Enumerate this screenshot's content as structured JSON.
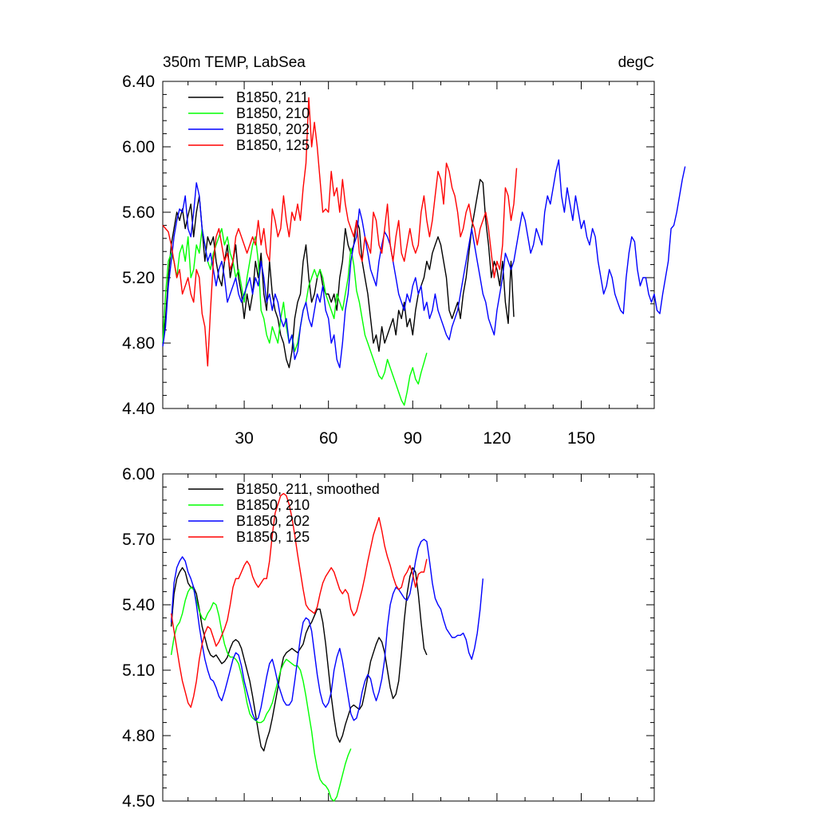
{
  "chart_data": [
    {
      "type": "line",
      "title": "350m TEMP, LabSea",
      "units": "degC",
      "xlim": [
        1,
        176
      ],
      "ylim": [
        4.4,
        6.4
      ],
      "xticks": [
        30,
        60,
        90,
        120,
        150
      ],
      "xtick_labels": [
        "30",
        "60",
        "90",
        "120",
        "150"
      ],
      "yticks": [
        4.4,
        4.8,
        5.2,
        5.6,
        6.0,
        6.4
      ],
      "ytick_labels": [
        "4.40",
        "4.80",
        "5.20",
        "5.60",
        "6.00",
        "6.40"
      ],
      "legend_position": "top-left",
      "series": [
        {
          "name": "B1850, 211",
          "color": "#000000",
          "x_start": 1,
          "values": [
            4.8,
            4.95,
            5.2,
            5.4,
            5.5,
            5.6,
            5.55,
            5.62,
            5.5,
            5.58,
            5.65,
            5.45,
            5.6,
            5.7,
            5.5,
            5.3,
            5.45,
            5.4,
            5.45,
            5.3,
            5.2,
            5.15,
            5.3,
            5.4,
            5.2,
            5.3,
            5.4,
            5.2,
            5.1,
            4.95,
            5.1,
            5.0,
            5.1,
            5.3,
            5.2,
            5.35,
            5.1,
            5.0,
            5.3,
            5.1,
            5.0,
            4.95,
            4.85,
            4.8,
            4.7,
            4.65,
            4.75,
            4.95,
            5.05,
            5.1,
            5.3,
            5.4,
            5.2,
            5.05,
            5.1,
            5.2,
            5.25,
            5.15,
            5.1,
            5.1,
            5.05,
            5.1,
            5.0,
            5.2,
            5.3,
            5.5,
            5.4,
            5.35,
            5.4,
            5.55,
            5.5,
            5.3,
            5.2,
            5.1,
            4.95,
            4.8,
            4.85,
            4.75,
            4.9,
            4.8,
            4.85,
            4.9,
            4.95,
            4.85,
            5.0,
            4.95,
            5.05,
            4.9,
            4.95,
            4.85,
            5.0,
            5.1,
            5.15,
            5.2,
            5.3,
            5.25,
            5.35,
            5.4,
            5.45,
            5.4,
            5.3,
            5.2,
            5.0,
            4.95,
            5.0,
            5.05,
            4.95,
            5.1,
            5.2,
            5.35,
            5.5,
            5.6,
            5.7,
            5.8,
            5.78,
            5.55,
            5.4,
            5.2,
            5.3,
            5.25,
            5.15,
            5.3,
            5.05,
            4.92,
            5.3,
            4.96
          ]
        },
        {
          "name": "B1850, 210",
          "color": "#00ff00",
          "x_start": 1,
          "values": [
            4.8,
            5.1,
            5.3,
            5.35,
            5.3,
            5.2,
            5.35,
            5.4,
            5.3,
            5.45,
            5.2,
            5.25,
            5.4,
            5.35,
            5.5,
            5.4,
            5.3,
            5.25,
            5.35,
            5.4,
            5.45,
            5.5,
            5.4,
            5.45,
            5.35,
            5.3,
            5.2,
            5.25,
            5.15,
            5.05,
            5.2,
            5.3,
            5.4,
            5.45,
            5.3,
            5.0,
            4.95,
            4.85,
            4.8,
            4.9,
            4.85,
            4.8,
            4.95,
            5.05,
            4.9,
            4.8,
            4.85,
            4.75,
            4.8,
            4.9,
            5.0,
            5.05,
            5.15,
            5.2,
            5.25,
            5.2,
            5.25,
            5.2,
            5.1,
            5.05,
            5.0,
            4.95,
            5.1,
            5.05,
            5.0,
            5.1,
            5.2,
            5.38,
            5.28,
            5.12,
            5.05,
            4.95,
            4.85,
            4.8,
            4.75,
            4.7,
            4.65,
            4.6,
            4.58,
            4.62,
            4.7,
            4.65,
            4.6,
            4.55,
            4.5,
            4.45,
            4.42,
            4.5,
            4.6,
            4.65,
            4.58,
            4.55,
            4.62,
            4.68,
            4.74
          ]
        },
        {
          "name": "B1850, 202",
          "color": "#0000ff",
          "x_start": 1,
          "values": [
            4.78,
            4.9,
            5.15,
            5.3,
            5.45,
            5.55,
            5.62,
            5.6,
            5.7,
            5.5,
            5.45,
            5.6,
            5.78,
            5.7,
            5.5,
            5.4,
            5.3,
            5.35,
            5.25,
            5.15,
            5.25,
            5.3,
            5.2,
            5.05,
            5.1,
            5.15,
            5.2,
            5.1,
            5.05,
            5.1,
            5.15,
            5.2,
            5.1,
            5.2,
            5.15,
            5.3,
            5.2,
            5.05,
            5.1,
            5.0,
            5.1,
            5.05,
            4.95,
            4.9,
            4.95,
            4.8,
            4.85,
            4.7,
            4.75,
            4.9,
            5.0,
            5.05,
            4.95,
            4.9,
            5.0,
            5.1,
            5.05,
            5.15,
            5.0,
            4.95,
            4.8,
            4.85,
            4.7,
            4.65,
            4.8,
            5.0,
            5.1,
            5.3,
            5.4,
            5.45,
            5.62,
            5.55,
            5.45,
            5.35,
            5.25,
            5.2,
            5.15,
            5.3,
            5.4,
            5.48,
            5.45,
            5.4,
            5.3,
            5.2,
            5.1,
            5.05,
            5.0,
            5.1,
            5.05,
            5.15,
            5.2,
            5.1,
            5.15,
            5.0,
            5.05,
            4.95,
            5.0,
            5.1,
            5.0,
            4.95,
            4.9,
            4.85,
            4.82,
            4.9,
            4.95,
            5.0,
            5.1,
            5.2,
            5.3,
            5.4,
            5.5,
            5.4,
            5.3,
            5.2,
            5.1,
            5.05,
            4.95,
            4.9,
            4.85,
            5.0,
            5.1,
            5.2,
            5.35,
            5.3,
            5.25,
            5.3,
            5.4,
            5.5,
            5.6,
            5.55,
            5.45,
            5.35,
            5.4,
            5.5,
            5.45,
            5.4,
            5.6,
            5.7,
            5.65,
            5.75,
            5.85,
            5.92,
            5.7,
            5.6,
            5.75,
            5.65,
            5.55,
            5.7,
            5.6,
            5.5,
            5.55,
            5.45,
            5.4,
            5.5,
            5.45,
            5.3,
            5.2,
            5.1,
            5.15,
            5.25,
            5.2,
            5.1,
            5.05,
            5.0,
            4.98,
            5.2,
            5.35,
            5.45,
            5.42,
            5.25,
            5.15,
            5.2,
            5.2,
            5.1,
            5.05,
            5.1,
            5.0,
            4.98,
            5.1,
            5.2,
            5.3,
            5.5,
            5.52,
            5.6,
            5.7,
            5.8,
            5.88
          ]
        },
        {
          "name": "B1850, 125",
          "color": "#ff0000",
          "x_start": 1,
          "values": [
            5.52,
            5.5,
            5.48,
            5.4,
            5.3,
            5.2,
            5.25,
            5.1,
            5.15,
            5.2,
            5.1,
            5.05,
            5.25,
            5.2,
            4.98,
            4.9,
            4.66,
            5.0,
            5.3,
            5.45,
            5.5,
            5.4,
            5.3,
            5.35,
            5.25,
            5.3,
            5.45,
            5.5,
            5.45,
            5.4,
            5.35,
            5.4,
            5.45,
            5.4,
            5.55,
            5.4,
            5.5,
            5.35,
            5.3,
            5.62,
            5.55,
            5.45,
            5.5,
            5.7,
            5.55,
            5.45,
            5.6,
            5.55,
            5.65,
            5.55,
            5.75,
            5.9,
            6.3,
            6.0,
            6.15,
            6.0,
            5.8,
            5.6,
            5.62,
            5.6,
            5.85,
            5.7,
            5.75,
            5.6,
            5.8,
            5.65,
            5.55,
            5.5,
            5.45,
            5.55,
            5.35,
            5.3,
            5.45,
            5.4,
            5.35,
            5.6,
            5.55,
            5.4,
            5.35,
            5.5,
            5.65,
            5.4,
            5.3,
            5.45,
            5.55,
            5.35,
            5.3,
            5.4,
            5.5,
            5.4,
            5.35,
            5.4,
            5.6,
            5.7,
            5.55,
            5.45,
            5.55,
            5.7,
            5.85,
            5.8,
            5.65,
            5.9,
            5.85,
            5.75,
            5.7,
            5.6,
            5.45,
            5.5,
            5.6,
            5.65,
            5.55,
            5.5,
            5.4,
            5.5,
            5.55,
            5.6,
            5.5,
            5.35,
            5.2,
            5.3,
            5.25,
            5.4,
            5.75,
            5.7,
            5.55,
            5.65,
            5.87
          ]
        }
      ]
    },
    {
      "type": "line",
      "title": "",
      "xlim": [
        1,
        176
      ],
      "ylim": [
        4.5,
        6.0
      ],
      "xticks": [
        30,
        60,
        90,
        120,
        150
      ],
      "yticks": [
        4.5,
        4.8,
        5.1,
        5.4,
        5.7,
        6.0
      ],
      "ytick_labels": [
        "4.50",
        "4.80",
        "5.10",
        "5.40",
        "5.70",
        "6.00"
      ],
      "legend_position": "top-left",
      "series": [
        {
          "name": "B1850, 211, smoothed",
          "color": "#000000",
          "x_start": 4,
          "values": [
            5.3,
            5.45,
            5.52,
            5.55,
            5.57,
            5.55,
            5.5,
            5.48,
            5.48,
            5.45,
            5.38,
            5.3,
            5.25,
            5.2,
            5.17,
            5.16,
            5.17,
            5.15,
            5.13,
            5.14,
            5.16,
            5.2,
            5.23,
            5.24,
            5.23,
            5.2,
            5.15,
            5.1,
            5.05,
            4.98,
            4.9,
            4.82,
            4.75,
            4.73,
            4.78,
            4.82,
            4.88,
            4.95,
            5.02,
            5.1,
            5.16,
            5.18,
            5.19,
            5.2,
            5.19,
            5.18,
            5.2,
            5.22,
            5.27,
            5.3,
            5.32,
            5.35,
            5.38,
            5.38,
            5.32,
            5.22,
            5.1,
            4.98,
            4.88,
            4.8,
            4.77,
            4.8,
            4.85,
            4.89,
            4.93,
            4.94,
            4.93,
            4.92,
            4.94,
            5.0,
            5.07,
            5.14,
            5.18,
            5.22,
            5.25,
            5.23,
            5.18,
            5.1,
            5.02,
            4.97,
            4.99,
            5.05,
            5.18,
            5.33,
            5.45,
            5.53,
            5.57,
            5.55,
            5.45,
            5.32,
            5.2,
            5.17
          ]
        },
        {
          "name": "B1850, 210",
          "color": "#00ff00",
          "x_start": 4,
          "values": [
            5.17,
            5.25,
            5.3,
            5.32,
            5.36,
            5.42,
            5.46,
            5.48,
            5.47,
            5.42,
            5.37,
            5.34,
            5.33,
            5.36,
            5.38,
            5.41,
            5.4,
            5.35,
            5.28,
            5.22,
            5.18,
            5.16,
            5.16,
            5.15,
            5.13,
            5.08,
            5.02,
            4.95,
            4.9,
            4.88,
            4.87,
            4.86,
            4.86,
            4.87,
            4.9,
            4.92,
            4.95,
            5.0,
            5.05,
            5.1,
            5.13,
            5.15,
            5.14,
            5.13,
            5.12,
            5.12,
            5.1,
            5.05,
            4.98,
            4.9,
            4.82,
            4.72,
            4.65,
            4.6,
            4.58,
            4.57,
            4.55,
            4.51,
            4.5,
            4.52,
            4.57,
            4.62,
            4.67,
            4.71,
            4.74
          ]
        },
        {
          "name": "B1850, 202",
          "color": "#0000ff",
          "x_start": 4,
          "values": [
            5.32,
            5.5,
            5.57,
            5.6,
            5.62,
            5.6,
            5.55,
            5.52,
            5.48,
            5.4,
            5.3,
            5.22,
            5.15,
            5.1,
            5.06,
            5.05,
            5.02,
            4.98,
            4.96,
            5.0,
            5.05,
            5.1,
            5.15,
            5.18,
            5.17,
            5.12,
            5.05,
            5.0,
            4.95,
            4.9,
            4.87,
            4.88,
            4.93,
            5.0,
            5.07,
            5.13,
            5.15,
            5.1,
            5.04,
            5.0,
            4.96,
            4.94,
            4.94,
            4.96,
            5.05,
            5.15,
            5.25,
            5.32,
            5.34,
            5.33,
            5.28,
            5.18,
            5.08,
            5.0,
            4.95,
            4.93,
            4.95,
            5.0,
            5.1,
            5.16,
            5.2,
            5.14,
            5.06,
            4.98,
            4.9,
            4.87,
            4.88,
            4.93,
            5.0,
            5.05,
            5.08,
            5.06,
            5.0,
            4.96,
            5.0,
            5.06,
            5.15,
            5.3,
            5.4,
            5.45,
            5.48,
            5.47,
            5.45,
            5.43,
            5.42,
            5.45,
            5.52,
            5.6,
            5.66,
            5.69,
            5.7,
            5.69,
            5.6,
            5.5,
            5.43,
            5.4,
            5.38,
            5.33,
            5.29,
            5.27,
            5.25,
            5.25,
            5.26,
            5.26,
            5.27,
            5.24,
            5.18,
            5.15,
            5.2,
            5.27,
            5.38,
            5.52
          ]
        },
        {
          "name": "B1850, 125",
          "color": "#ff0000",
          "x_start": 4,
          "values": [
            5.36,
            5.28,
            5.2,
            5.12,
            5.05,
            5.0,
            4.95,
            4.93,
            4.98,
            5.05,
            5.15,
            5.22,
            5.27,
            5.3,
            5.29,
            5.25,
            5.21,
            5.23,
            5.26,
            5.29,
            5.33,
            5.4,
            5.48,
            5.52,
            5.52,
            5.55,
            5.58,
            5.6,
            5.58,
            5.53,
            5.5,
            5.48,
            5.5,
            5.52,
            5.52,
            5.6,
            5.72,
            5.82,
            5.86,
            5.9,
            5.91,
            5.9,
            5.86,
            5.8,
            5.72,
            5.63,
            5.55,
            5.47,
            5.4,
            5.38,
            5.37,
            5.36,
            5.39,
            5.45,
            5.5,
            5.53,
            5.55,
            5.57,
            5.55,
            5.51,
            5.47,
            5.45,
            5.47,
            5.45,
            5.38,
            5.35,
            5.37,
            5.42,
            5.47,
            5.53,
            5.6,
            5.66,
            5.72,
            5.76,
            5.8,
            5.74,
            5.67,
            5.62,
            5.58,
            5.53,
            5.49,
            5.47,
            5.48,
            5.53,
            5.55,
            5.58,
            5.54,
            5.48,
            5.54,
            5.55,
            5.55,
            5.61
          ]
        }
      ]
    }
  ]
}
